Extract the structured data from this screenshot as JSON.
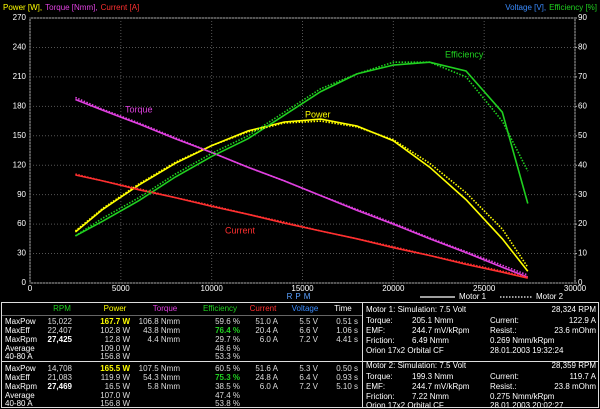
{
  "chart_data": {
    "type": "line",
    "y_label": [
      {
        "text": "Power [W],",
        "color": "#ffff00"
      },
      {
        "text": "Torque [Nmm],",
        "color": "#e040e0"
      },
      {
        "text": "Current [A]",
        "color": "#ff3030"
      }
    ],
    "y2_label": [
      {
        "text": "Voltage [V],",
        "color": "#3a8cff"
      },
      {
        "text": "Efficiency [%]",
        "color": "#20d020"
      }
    ],
    "x_label": "RPM",
    "x": [
      2500,
      4000,
      6000,
      8000,
      10000,
      12000,
      14000,
      16000,
      18000,
      20000,
      22000,
      24000,
      26000,
      27400
    ],
    "xlim": [
      0,
      30000
    ],
    "xticks": [
      0,
      5000,
      10000,
      15000,
      20000,
      25000,
      30000
    ],
    "ylim": [
      0,
      270
    ],
    "yticks": [
      0,
      30,
      60,
      90,
      120,
      150,
      180,
      210,
      240,
      270
    ],
    "y2lim": [
      0,
      90
    ],
    "y2ticks": [
      0,
      10,
      20,
      30,
      40,
      50,
      60,
      70,
      80,
      90
    ],
    "grid": true,
    "motors": [
      {
        "name": "Motor 1",
        "dash": "solid",
        "series": [
          {
            "name": "Power",
            "color": "#ffff00",
            "values": [
              52,
              75,
              100,
              122,
              140,
              155,
              164,
              167,
              160,
              145,
              118,
              85,
              45,
              12
            ]
          },
          {
            "name": "Torque",
            "color": "#e040e0",
            "values": [
              187,
              176,
              162,
              147,
              133,
              118,
              104,
              89,
              74,
              60,
              45,
              31,
              16,
              6
            ]
          },
          {
            "name": "Current",
            "color": "#ff3030",
            "values": [
              110,
              104,
              95,
              87,
              78,
              70,
              61,
              53,
              45,
              36,
              28,
              19,
              11,
              5
            ]
          },
          {
            "name": "Efficiency",
            "color": "#20d020",
            "axis": "y2",
            "values": [
              16,
              21,
              28,
              36,
              43,
              49,
              57,
              65,
              71,
              74,
              75,
              72,
              58,
              27
            ]
          }
        ]
      },
      {
        "name": "Motor 2",
        "dash": "dotted",
        "series": [
          {
            "color": "#ffff00",
            "values": [
              53,
              76,
              101,
              123,
              140,
              154,
              163,
              165,
              159,
              146,
              122,
              92,
              55,
              16
            ]
          },
          {
            "color": "#e040e0",
            "values": [
              189,
              177,
              163,
              148,
              133,
              118,
              104,
              89,
              75,
              61,
              46,
              32,
              18,
              8
            ]
          },
          {
            "color": "#ff3030",
            "values": [
              111,
              104,
              96,
              87,
              79,
              70,
              62,
              53,
              45,
              37,
              28,
              20,
              12,
              6
            ]
          },
          {
            "color": "#20d020",
            "axis": "y2",
            "values": [
              16,
              22,
              29,
              37,
              44,
              50,
              58,
              66,
              71,
              75,
              75,
              70,
              55,
              38
            ]
          }
        ]
      }
    ]
  },
  "stats": {
    "columns": [
      {
        "label": "RPM",
        "color": "#20d020"
      },
      {
        "label": "Power",
        "color": "#ffff00"
      },
      {
        "label": "Torque",
        "color": "#e040e0"
      },
      {
        "label": "Efficiency",
        "color": "#20d020"
      },
      {
        "label": "Current",
        "color": "#ff3030"
      },
      {
        "label": "Voltage",
        "color": "#3a8cff"
      },
      {
        "label": "Time",
        "color": "#ffffff"
      }
    ],
    "blocks": [
      {
        "rows": [
          {
            "label": "MaxPow",
            "cells": [
              "15,022",
              "167.7 W",
              "106.8 Nmm",
              "59.6 %",
              "51.0 A",
              "5.5 V",
              "0.51 s"
            ]
          },
          {
            "label": "MaxEff",
            "cells": [
              "22,407",
              "102.8 W",
              "43.8 Nmm",
              "76.4 %",
              "20.4 A",
              "6.6 V",
              "1.06 s"
            ]
          },
          {
            "label": "MaxRpm",
            "cells": [
              "27,425",
              "12.8 W",
              "4.4 Nmm",
              "29.7 %",
              "6.0 A",
              "7.2 V",
              "4.41 s"
            ]
          },
          {
            "label": "Average",
            "cells": [
              null,
              "109.0 W",
              null,
              "48.6 %",
              null,
              null,
              null
            ]
          },
          {
            "label": "40-80 A",
            "cells": [
              null,
              "156.8 W",
              null,
              "53.3 %",
              null,
              null,
              null
            ]
          }
        ]
      },
      {
        "rows": [
          {
            "label": "MaxPow",
            "cells": [
              "14,708",
              "165.5 W",
              "107.5 Nmm",
              "60.5 %",
              "51.6 A",
              "5.3 V",
              "0.50 s"
            ]
          },
          {
            "label": "MaxEff",
            "cells": [
              "21,083",
              "119.9 W",
              "54.3 Nmm",
              "75.3 %",
              "24.8 A",
              "6.4 V",
              "0.93 s"
            ]
          },
          {
            "label": "MaxRpm",
            "cells": [
              "27,469",
              "16.5 W",
              "5.8 Nmm",
              "38.5 %",
              "6.0 A",
              "7.2 V",
              "5.10 s"
            ]
          },
          {
            "label": "Average",
            "cells": [
              null,
              "107.0 W",
              null,
              "47.4 %",
              null,
              null,
              null
            ]
          },
          {
            "label": "40-80 A",
            "cells": [
              null,
              "156.8 W",
              null,
              "53.8 %",
              null,
              null,
              null
            ]
          }
        ]
      }
    ]
  },
  "motor_info": [
    {
      "rows": [
        [
          "Motor 1: Simulation: 7.5 Volt",
          null,
          null,
          "28,324 RPM"
        ],
        [
          "Torque:",
          "205.1 Nmm",
          "Current:",
          "122.9 A"
        ],
        [
          "EMF:",
          "244.7 mV/kRpm",
          "Resist.:",
          "23.6 mOhm"
        ],
        [
          "Friction:",
          "6.49 Nmm",
          "0.269 Nmm/kRpm",
          null
        ],
        [
          "Orion 17x2 Orbital CF",
          null,
          "28.01.2003 19:32:24",
          null
        ]
      ]
    },
    {
      "rows": [
        [
          "Motor 2: Simulation: 7.5 Volt",
          null,
          null,
          "28,359 RPM"
        ],
        [
          "Torque:",
          "199.3 Nmm",
          "Current:",
          "119.7 A"
        ],
        [
          "EMF:",
          "244.7 mV/kRpm",
          "Resist.:",
          "23.8 mOhm"
        ],
        [
          "Friction:",
          "7.22 Nmm",
          "0.275 Nmm/kRpm",
          null
        ],
        [
          "Orion 17x2 Orbital CF",
          null,
          "28.01.2003 20:02:27",
          null
        ]
      ]
    }
  ]
}
